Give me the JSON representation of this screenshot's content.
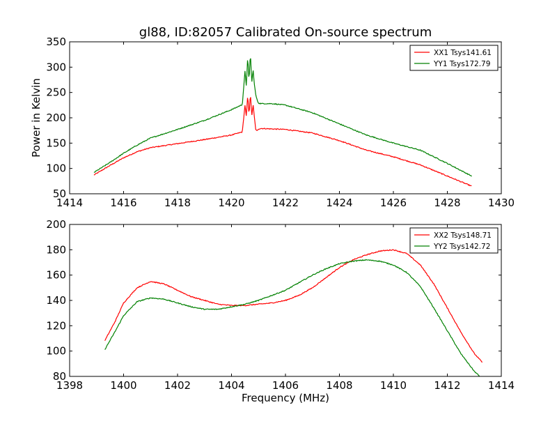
{
  "chart_data": [
    {
      "type": "line",
      "title": "gl88, ID:82057 Calibrated On-source spectrum",
      "xlabel": "",
      "ylabel": "Power in Kelvin",
      "xlim": [
        1414,
        1430
      ],
      "ylim": [
        50,
        350
      ],
      "xticks": [
        "1414",
        "1416",
        "1418",
        "1420",
        "1422",
        "1424",
        "1426",
        "1428",
        "1430"
      ],
      "yticks": [
        "50",
        "100",
        "150",
        "200",
        "250",
        "300",
        "350"
      ],
      "grid": false,
      "legend": "top-right",
      "series": [
        {
          "name": "XX1 Tsys141.61",
          "color": "#ff0000",
          "x": [
            1414.9,
            1415.5,
            1416.0,
            1416.5,
            1417.0,
            1418.0,
            1419.0,
            1420.0,
            1420.4,
            1420.5,
            1420.55,
            1420.6,
            1420.65,
            1420.7,
            1420.75,
            1420.8,
            1420.85,
            1420.9,
            1420.95,
            1421.0,
            1421.1,
            1421.5,
            1422.0,
            1423.0,
            1424.0,
            1425.0,
            1426.0,
            1427.0,
            1428.0,
            1428.9
          ],
          "y": [
            87,
            106,
            121,
            133,
            141,
            149,
            157,
            166,
            172,
            225,
            202,
            245,
            205,
            249,
            203,
            226,
            200,
            176,
            174,
            178,
            179,
            178,
            177,
            170,
            155,
            136,
            123,
            107,
            85,
            65
          ]
        },
        {
          "name": "YY1 Tsys172.79",
          "color": "#008000",
          "x": [
            1414.9,
            1415.5,
            1416.0,
            1416.5,
            1417.0,
            1418.0,
            1419.0,
            1420.0,
            1420.4,
            1420.5,
            1420.55,
            1420.6,
            1420.65,
            1420.7,
            1420.75,
            1420.8,
            1420.85,
            1420.9,
            1420.95,
            1421.0,
            1421.1,
            1421.5,
            1422.0,
            1423.0,
            1424.0,
            1425.0,
            1426.0,
            1427.0,
            1428.0,
            1428.9
          ],
          "y": [
            92,
            112,
            130,
            146,
            160,
            177,
            195,
            216,
            226,
            292,
            262,
            322,
            270,
            330,
            268,
            295,
            265,
            245,
            235,
            229,
            228,
            228,
            225,
            210,
            188,
            166,
            150,
            136,
            110,
            85
          ]
        }
      ]
    },
    {
      "type": "line",
      "title": "",
      "xlabel": "Frequency (MHz)",
      "ylabel": "",
      "xlim": [
        1398,
        1414
      ],
      "ylim": [
        80,
        200
      ],
      "xticks": [
        "1398",
        "1400",
        "1402",
        "1404",
        "1406",
        "1408",
        "1410",
        "1412",
        "1414"
      ],
      "yticks": [
        "80",
        "100",
        "120",
        "140",
        "160",
        "180",
        "200"
      ],
      "grid": false,
      "legend": "top-right",
      "series": [
        {
          "name": "XX2 Tsys148.71",
          "color": "#ff0000",
          "x": [
            1399.3,
            1399.7,
            1400.0,
            1400.5,
            1401.0,
            1401.5,
            1402.0,
            1402.5,
            1403.0,
            1403.5,
            1404.0,
            1404.5,
            1405.0,
            1405.5,
            1406.0,
            1406.5,
            1407.0,
            1407.5,
            1408.0,
            1408.5,
            1409.0,
            1409.5,
            1410.0,
            1410.5,
            1411.0,
            1411.5,
            1412.0,
            1412.5,
            1413.0,
            1413.3
          ],
          "y": [
            108,
            124,
            138,
            150,
            155,
            153,
            148,
            143,
            140,
            137,
            136,
            136,
            137,
            138,
            140,
            144,
            150,
            158,
            166,
            172,
            176,
            179,
            180,
            177,
            168,
            153,
            134,
            115,
            98,
            91
          ]
        },
        {
          "name": "YY2 Tsys142.72",
          "color": "#008000",
          "x": [
            1399.3,
            1399.7,
            1400.0,
            1400.5,
            1401.0,
            1401.5,
            1402.0,
            1402.5,
            1403.0,
            1403.5,
            1404.0,
            1404.5,
            1405.0,
            1405.5,
            1406.0,
            1406.5,
            1407.0,
            1407.5,
            1408.0,
            1408.5,
            1409.0,
            1409.5,
            1410.0,
            1410.5,
            1411.0,
            1411.5,
            1412.0,
            1412.5,
            1413.0,
            1413.2
          ],
          "y": [
            101,
            116,
            128,
            139,
            142,
            141,
            138,
            135,
            133,
            133,
            135,
            137,
            140,
            144,
            148,
            154,
            160,
            165,
            169,
            171,
            172,
            171,
            168,
            162,
            151,
            134,
            116,
            98,
            84,
            80
          ]
        }
      ]
    }
  ]
}
